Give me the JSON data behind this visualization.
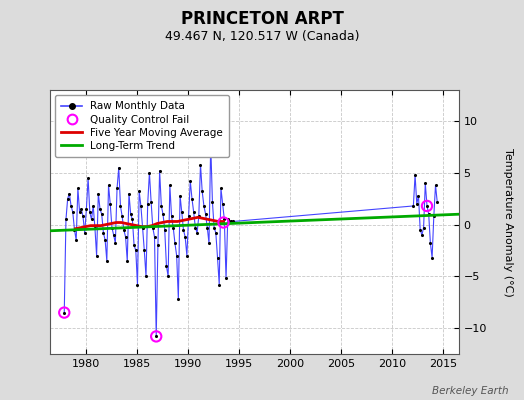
{
  "title": "PRINCETON ARPT",
  "subtitle": "49.467 N, 120.517 W (Canada)",
  "ylabel": "Temperature Anomaly (°C)",
  "watermark": "Berkeley Earth",
  "xlim": [
    1976.5,
    2016.5
  ],
  "ylim": [
    -12.5,
    13
  ],
  "yticks": [
    -10,
    -5,
    0,
    5,
    10
  ],
  "xticks": [
    1980,
    1985,
    1990,
    1995,
    2000,
    2005,
    2010,
    2015
  ],
  "bg_color": "#dcdcdc",
  "plot_bg_color": "#ffffff",
  "grid_color": "#c8c8c8",
  "raw_color": "#4444ff",
  "dot_color": "#000000",
  "ma_color": "#dd0000",
  "trend_color": "#00aa00",
  "qc_color": "#ff00ff",
  "legend_entries": [
    "Raw Monthly Data",
    "Quality Control Fail",
    "Five Year Moving Average",
    "Long-Term Trend"
  ],
  "raw_data": [
    [
      1977.917,
      -8.5
    ],
    [
      1978.083,
      0.5
    ],
    [
      1978.25,
      2.5
    ],
    [
      1978.417,
      3.0
    ],
    [
      1978.583,
      1.8
    ],
    [
      1978.75,
      1.2
    ],
    [
      1978.917,
      -0.5
    ],
    [
      1979.083,
      -1.5
    ],
    [
      1979.25,
      3.5
    ],
    [
      1979.417,
      1.2
    ],
    [
      1979.583,
      1.5
    ],
    [
      1979.75,
      0.8
    ],
    [
      1979.917,
      -0.8
    ],
    [
      1980.083,
      1.5
    ],
    [
      1980.25,
      4.5
    ],
    [
      1980.417,
      1.2
    ],
    [
      1980.583,
      0.5
    ],
    [
      1980.75,
      1.8
    ],
    [
      1980.917,
      -0.3
    ],
    [
      1981.083,
      -3.0
    ],
    [
      1981.25,
      3.0
    ],
    [
      1981.417,
      1.5
    ],
    [
      1981.583,
      1.0
    ],
    [
      1981.75,
      -0.8
    ],
    [
      1981.917,
      -1.5
    ],
    [
      1982.083,
      -3.5
    ],
    [
      1982.25,
      3.8
    ],
    [
      1982.417,
      2.0
    ],
    [
      1982.583,
      -0.3
    ],
    [
      1982.75,
      -1.0
    ],
    [
      1982.917,
      -1.8
    ],
    [
      1983.083,
      3.5
    ],
    [
      1983.25,
      5.5
    ],
    [
      1983.417,
      1.8
    ],
    [
      1983.583,
      0.8
    ],
    [
      1983.75,
      -0.5
    ],
    [
      1983.917,
      -1.2
    ],
    [
      1984.083,
      -3.5
    ],
    [
      1984.25,
      3.0
    ],
    [
      1984.417,
      1.0
    ],
    [
      1984.583,
      0.5
    ],
    [
      1984.75,
      -2.0
    ],
    [
      1984.917,
      -2.5
    ],
    [
      1985.083,
      -5.8
    ],
    [
      1985.25,
      3.2
    ],
    [
      1985.417,
      1.8
    ],
    [
      1985.583,
      -0.3
    ],
    [
      1985.75,
      -2.5
    ],
    [
      1985.917,
      -5.0
    ],
    [
      1986.083,
      2.0
    ],
    [
      1986.25,
      5.0
    ],
    [
      1986.417,
      2.2
    ],
    [
      1986.583,
      -0.3
    ],
    [
      1986.75,
      -1.2
    ],
    [
      1986.917,
      -10.8
    ],
    [
      1987.083,
      -2.0
    ],
    [
      1987.25,
      5.2
    ],
    [
      1987.417,
      1.8
    ],
    [
      1987.583,
      1.0
    ],
    [
      1987.75,
      -0.5
    ],
    [
      1987.917,
      -4.0
    ],
    [
      1988.083,
      -5.0
    ],
    [
      1988.25,
      3.8
    ],
    [
      1988.417,
      0.8
    ],
    [
      1988.583,
      -0.3
    ],
    [
      1988.75,
      -1.8
    ],
    [
      1988.917,
      -3.0
    ],
    [
      1989.083,
      -7.2
    ],
    [
      1989.25,
      2.8
    ],
    [
      1989.417,
      1.2
    ],
    [
      1989.583,
      -0.5
    ],
    [
      1989.75,
      -1.2
    ],
    [
      1989.917,
      -3.0
    ],
    [
      1990.083,
      0.8
    ],
    [
      1990.25,
      4.2
    ],
    [
      1990.417,
      2.5
    ],
    [
      1990.583,
      1.2
    ],
    [
      1990.75,
      -0.3
    ],
    [
      1990.917,
      -0.8
    ],
    [
      1991.083,
      0.8
    ],
    [
      1991.25,
      5.8
    ],
    [
      1991.417,
      3.2
    ],
    [
      1991.583,
      1.8
    ],
    [
      1991.75,
      1.0
    ],
    [
      1991.917,
      -0.3
    ],
    [
      1992.083,
      -1.8
    ],
    [
      1992.25,
      7.8
    ],
    [
      1992.417,
      2.2
    ],
    [
      1992.583,
      -0.3
    ],
    [
      1992.75,
      -0.8
    ],
    [
      1992.917,
      -3.2
    ],
    [
      1993.083,
      -5.8
    ],
    [
      1993.25,
      3.5
    ],
    [
      1993.417,
      2.0
    ],
    [
      1993.583,
      0.5
    ],
    [
      1993.75,
      -5.2
    ],
    [
      1993.917,
      0.5
    ],
    [
      1994.083,
      0.3
    ],
    [
      1994.25,
      0.3
    ],
    [
      1994.417,
      0.3
    ],
    [
      2012.083,
      1.8
    ],
    [
      2012.25,
      4.8
    ],
    [
      2012.417,
      2.0
    ],
    [
      2012.583,
      2.8
    ],
    [
      2012.75,
      -0.5
    ],
    [
      2012.917,
      -1.0
    ],
    [
      2013.083,
      -0.3
    ],
    [
      2013.25,
      4.0
    ],
    [
      2013.417,
      1.8
    ],
    [
      2013.583,
      1.0
    ],
    [
      2013.75,
      -1.8
    ],
    [
      2013.917,
      -3.2
    ],
    [
      2014.083,
      0.8
    ],
    [
      2014.25,
      3.8
    ],
    [
      2014.417,
      2.2
    ]
  ],
  "qc_fail_points": [
    [
      1977.917,
      -8.5
    ],
    [
      1986.917,
      -10.8
    ],
    [
      1993.5,
      0.2
    ],
    [
      2013.417,
      1.8
    ]
  ],
  "moving_avg": [
    [
      1979.0,
      -0.4
    ],
    [
      1979.5,
      -0.3
    ],
    [
      1980.0,
      -0.2
    ],
    [
      1980.5,
      -0.1
    ],
    [
      1981.0,
      -0.1
    ],
    [
      1981.5,
      -0.1
    ],
    [
      1982.0,
      0.0
    ],
    [
      1982.5,
      0.1
    ],
    [
      1983.0,
      0.2
    ],
    [
      1983.5,
      0.2
    ],
    [
      1984.0,
      0.1
    ],
    [
      1984.5,
      0.0
    ],
    [
      1985.0,
      -0.1
    ],
    [
      1985.5,
      -0.2
    ],
    [
      1986.0,
      -0.2
    ],
    [
      1986.5,
      -0.1
    ],
    [
      1987.0,
      0.1
    ],
    [
      1987.5,
      0.2
    ],
    [
      1988.0,
      0.3
    ],
    [
      1988.5,
      0.3
    ],
    [
      1989.0,
      0.3
    ],
    [
      1989.5,
      0.4
    ],
    [
      1990.0,
      0.5
    ],
    [
      1990.5,
      0.6
    ],
    [
      1991.0,
      0.7
    ],
    [
      1991.5,
      0.6
    ],
    [
      1992.0,
      0.5
    ],
    [
      1992.5,
      0.4
    ],
    [
      1993.0,
      0.3
    ],
    [
      1993.5,
      0.3
    ]
  ],
  "trend_line": [
    [
      1976.5,
      -0.6
    ],
    [
      2016.5,
      1.0
    ]
  ]
}
